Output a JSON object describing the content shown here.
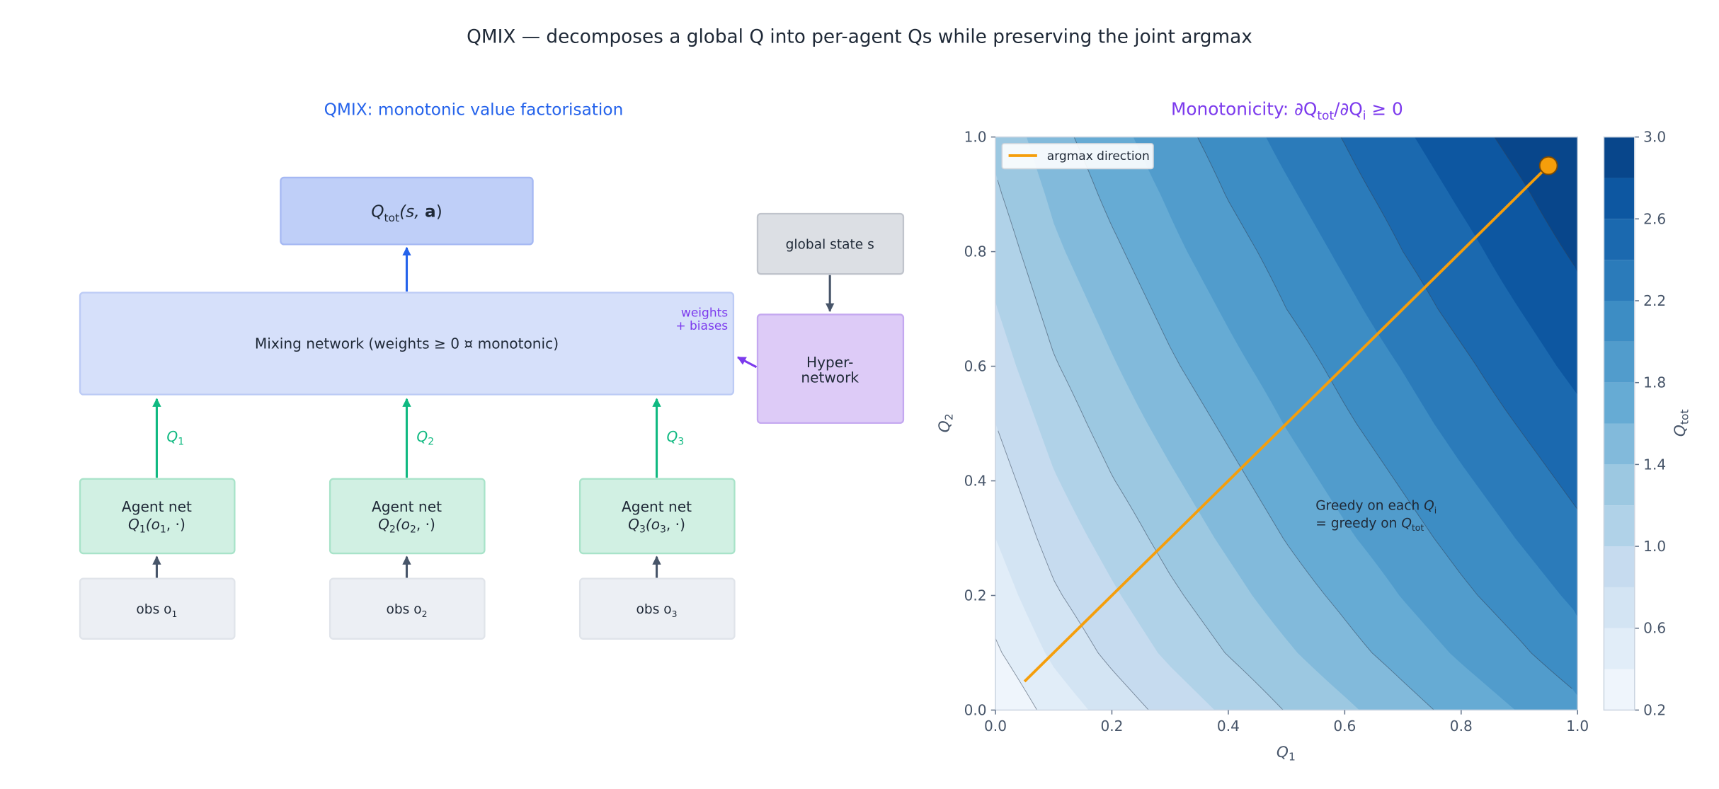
{
  "title": "QMIX  —  decomposes a global Q into per-agent Qs while preserving the joint argmax",
  "diagram": {
    "subtitle": "QMIX: monotonic value factorisation",
    "qtot_box": {
      "main": "Q",
      "sub": "tot",
      "open": "(s, ",
      "bold": "a",
      "close": ")"
    },
    "mixing_box": {
      "label": "Mixing network (weights  ≥ 0  ¤  monotonic)",
      "note_line1": "weights",
      "note_line2": "+ biases"
    },
    "global_state": "global state  s",
    "hypernetwork": {
      "line1": "Hyper-",
      "line2": "network"
    },
    "agents": [
      {
        "title": "Agent net",
        "q": "Q",
        "idx": "1",
        "args_open": "(o",
        "args_close": ", ·)",
        "edge_label": "1",
        "obs": "obs o",
        "obs_sub": "1"
      },
      {
        "title": "Agent net",
        "q": "Q",
        "idx": "2",
        "args_open": "(o",
        "args_close": ", ·)",
        "edge_label": "2",
        "obs": "obs o",
        "obs_sub": "2"
      },
      {
        "title": "Agent net",
        "q": "Q",
        "idx": "3",
        "args_open": "(o",
        "args_close": ", ·)",
        "edge_label": "3",
        "obs": "obs o",
        "obs_sub": "3"
      }
    ],
    "colors": {
      "subtitle": "#2563eb",
      "qtot_fill": "#bfcff8",
      "mixing_fill": "#d6e0fa",
      "agent_fill": "#d1f0e3",
      "edge_green": "#10b981",
      "purple": "#7c3aed",
      "obs_fill": "#eceff4",
      "state_fill": "#dcdfe4",
      "hyper_fill": "#ddcbf7"
    }
  },
  "chart_data": {
    "type": "contour",
    "title": {
      "prefix": "Monotonicity: ∂Q",
      "sub1": "tot",
      "mid": "/∂Q",
      "sub2": "i",
      "suffix": " ≥ 0"
    },
    "title_color": "#7c3aed",
    "xlabel": {
      "main": "Q",
      "sub": "1"
    },
    "ylabel": {
      "main": "Q",
      "sub": "2"
    },
    "xlim": [
      0,
      1
    ],
    "ylim": [
      0,
      1
    ],
    "xticks": [
      "0.0",
      "0.2",
      "0.4",
      "0.6",
      "0.8",
      "1.0"
    ],
    "yticks": [
      "0.0",
      "0.2",
      "0.4",
      "0.6",
      "0.8",
      "1.0"
    ],
    "grid_x": [
      0,
      0.1,
      0.2,
      0.3,
      0.4,
      0.5,
      0.6,
      0.7,
      0.8,
      0.9,
      1.0
    ],
    "grid_y": [
      0,
      0.1,
      0.2,
      0.3,
      0.4,
      0.5,
      0.6,
      0.7,
      0.8,
      0.9,
      1.0
    ],
    "z": [
      [
        0.2,
        0.48,
        0.68,
        0.87,
        1.04,
        1.21,
        1.36,
        1.52,
        1.67,
        1.81,
        1.95
      ],
      [
        0.37,
        0.64,
        0.85,
        1.04,
        1.21,
        1.37,
        1.53,
        1.68,
        1.83,
        1.97,
        2.12
      ],
      [
        0.49,
        0.77,
        0.97,
        1.16,
        1.33,
        1.5,
        1.65,
        1.81,
        1.96,
        2.1,
        2.24
      ],
      [
        0.6,
        0.88,
        1.08,
        1.27,
        1.44,
        1.61,
        1.77,
        1.92,
        2.07,
        2.21,
        2.35
      ],
      [
        0.7,
        0.98,
        1.19,
        1.37,
        1.54,
        1.71,
        1.87,
        2.02,
        2.17,
        2.31,
        2.45
      ],
      [
        0.8,
        1.08,
        1.29,
        1.47,
        1.64,
        1.81,
        1.97,
        2.12,
        2.27,
        2.41,
        2.55
      ],
      [
        0.9,
        1.18,
        1.38,
        1.57,
        1.74,
        1.9,
        2.06,
        2.21,
        2.36,
        2.51,
        2.65
      ],
      [
        0.99,
        1.27,
        1.47,
        1.66,
        1.83,
        2.0,
        2.15,
        2.31,
        2.46,
        2.6,
        2.74
      ],
      [
        1.08,
        1.36,
        1.56,
        1.75,
        1.92,
        2.08,
        2.24,
        2.4,
        2.54,
        2.69,
        2.83
      ],
      [
        1.17,
        1.44,
        1.65,
        1.83,
        2.01,
        2.17,
        2.33,
        2.48,
        2.63,
        2.77,
        2.92
      ],
      [
        1.25,
        1.53,
        1.73,
        1.92,
        2.09,
        2.26,
        2.41,
        2.57,
        2.72,
        2.86,
        3.0
      ]
    ],
    "fill_levels": [
      0.2,
      0.4,
      0.6,
      0.8,
      1.0,
      1.2,
      1.4,
      1.6,
      1.8,
      2.0,
      2.2,
      2.4,
      2.6,
      2.8,
      3.0
    ],
    "band_colors": [
      "#eff5fc",
      "#e1edf8",
      "#d3e4f3",
      "#c6dbef",
      "#b0d2e8",
      "#9cc8e1",
      "#82badb",
      "#66abd4",
      "#519ccc",
      "#3d8dc4",
      "#2b7bba",
      "#1b69af",
      "#0d57a1",
      "#08468b"
    ],
    "line_levels": [
      0.4,
      0.8,
      1.2,
      1.6,
      2.0,
      2.4,
      2.8
    ],
    "argmax_line": {
      "name": "argmax direction",
      "color": "#f59e0b",
      "x": [
        0.05,
        0.95
      ],
      "y": [
        0.05,
        0.95
      ]
    },
    "legend_placement": "top-left",
    "annotation": {
      "line1": "Greedy on each ",
      "q1": "Q",
      "sub1": "i",
      "line2": "=  greedy on ",
      "q2": "Q",
      "sub2": "tot",
      "x": 0.55,
      "y": 0.33
    },
    "colorbar": {
      "label_main": "Q",
      "label_sub": "tot",
      "ticks": [
        "0.2",
        "0.6",
        "1.0",
        "1.4",
        "1.8",
        "2.2",
        "2.6",
        "3.0"
      ],
      "range": [
        0.2,
        3.0
      ]
    }
  }
}
